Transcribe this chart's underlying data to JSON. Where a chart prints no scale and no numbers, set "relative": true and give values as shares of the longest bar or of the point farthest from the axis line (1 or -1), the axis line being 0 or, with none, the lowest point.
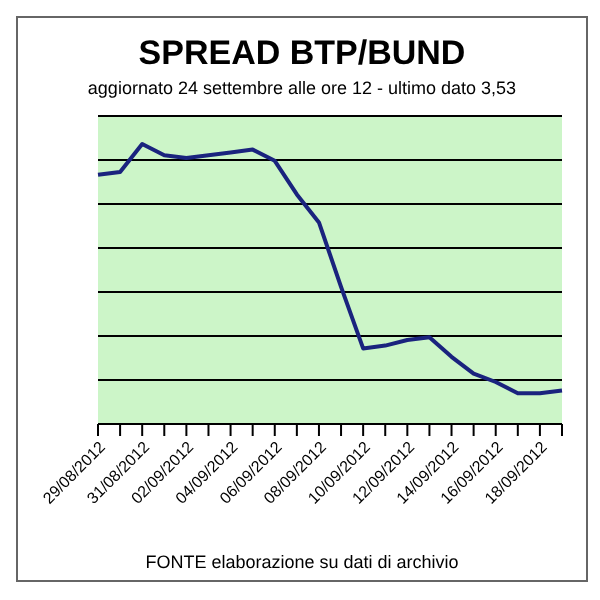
{
  "chart_data": {
    "type": "line",
    "title": "SPREAD  BTP/BUND",
    "subtitle": "aggiornato 24 settembre alle ore 12 - ultimo dato 3,53",
    "categories": [
      "29/08/2012",
      null,
      "31/08/2012",
      null,
      "02/09/2012",
      null,
      "04/09/2012",
      null,
      "06/09/2012",
      null,
      "08/09/2012",
      null,
      "10/09/2012",
      null,
      "12/09/2012",
      null,
      "14/09/2012",
      null,
      "16/09/2012",
      null,
      "18/09/2012",
      null
    ],
    "relative": true,
    "grid": true,
    "marker": "none",
    "line_style": "solid",
    "series": [
      {
        "color": "#1a237e",
        "values": [
          0.89,
          0.9,
          1.0,
          0.96,
          0.95,
          0.96,
          0.97,
          0.98,
          0.94,
          0.82,
          0.72,
          0.49,
          0.27,
          0.28,
          0.3,
          0.31,
          0.24,
          0.18,
          0.15,
          0.11,
          0.11,
          0.12
        ]
      }
    ],
    "annotations": [
      "FONTE elaborazione su dati di archivio"
    ]
  }
}
